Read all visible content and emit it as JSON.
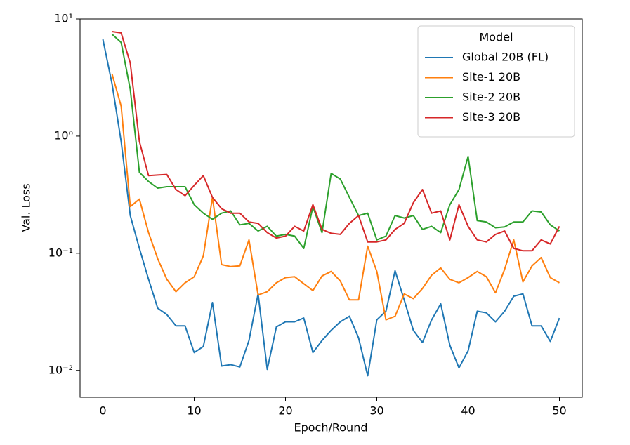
{
  "chart_data": {
    "type": "line",
    "xlabel": "Epoch/Round",
    "ylabel": "Val. Loss",
    "log_y": true,
    "x": [
      0,
      1,
      2,
      3,
      4,
      5,
      6,
      7,
      8,
      9,
      10,
      11,
      12,
      13,
      14,
      15,
      16,
      17,
      18,
      19,
      20,
      21,
      22,
      23,
      24,
      25,
      26,
      27,
      28,
      29,
      30,
      31,
      32,
      33,
      34,
      35,
      36,
      37,
      38,
      39,
      40,
      41,
      42,
      43,
      44,
      45,
      46,
      47,
      48,
      49,
      50
    ],
    "xlim": [
      -2.5,
      52.5
    ],
    "xticks": [
      0,
      10,
      20,
      30,
      40,
      50
    ],
    "ylim": [
      0.0059,
      10
    ],
    "yticks": [
      {
        "value": 0.01,
        "label": "10⁻²"
      },
      {
        "value": 0.1,
        "label": "10⁻¹"
      },
      {
        "value": 1,
        "label": "10⁰"
      },
      {
        "value": 10,
        "label": "10¹"
      }
    ],
    "legend_title": "Model",
    "legend": "upper right",
    "series": [
      {
        "name": "Global 20B (FL)",
        "color": "#1f77b4",
        "values": [
          6.7,
          2.8,
          0.9,
          0.21,
          0.11,
          0.06,
          0.034,
          0.03,
          0.024,
          0.024,
          0.0142,
          0.016,
          0.038,
          0.0109,
          0.0112,
          0.0107,
          0.018,
          0.045,
          0.0102,
          0.0235,
          0.026,
          0.026,
          0.028,
          0.0142,
          0.018,
          0.022,
          0.026,
          0.029,
          0.019,
          0.009,
          0.027,
          0.032,
          0.071,
          0.04,
          0.022,
          0.0173,
          0.027,
          0.037,
          0.0164,
          0.0105,
          0.0147,
          0.032,
          0.031,
          0.026,
          0.032,
          0.043,
          0.045,
          0.024,
          0.024,
          0.0177,
          0.028
        ]
      },
      {
        "name": "Site-1 20B",
        "color": "#ff7f0e",
        "values": [
          null,
          3.4,
          1.8,
          0.25,
          0.29,
          0.15,
          0.09,
          0.06,
          0.047,
          0.056,
          0.063,
          0.095,
          0.3,
          0.08,
          0.077,
          0.078,
          0.13,
          0.044,
          0.047,
          0.056,
          0.062,
          0.063,
          0.055,
          0.048,
          0.064,
          0.07,
          0.058,
          0.04,
          0.04,
          0.115,
          0.07,
          0.027,
          0.029,
          0.045,
          0.041,
          0.05,
          0.065,
          0.075,
          0.06,
          0.056,
          0.062,
          0.07,
          0.063,
          0.046,
          0.073,
          0.13,
          0.057,
          0.078,
          0.092,
          0.062,
          0.056
        ]
      },
      {
        "name": "Site-2 20B",
        "color": "#2ca02c",
        "values": [
          null,
          7.4,
          6.3,
          2.5,
          0.49,
          0.41,
          0.36,
          0.37,
          0.37,
          0.37,
          0.26,
          0.22,
          0.195,
          0.22,
          0.23,
          0.175,
          0.18,
          0.155,
          0.17,
          0.14,
          0.145,
          0.14,
          0.11,
          0.25,
          0.15,
          0.48,
          0.43,
          0.3,
          0.21,
          0.22,
          0.13,
          0.14,
          0.21,
          0.2,
          0.21,
          0.16,
          0.17,
          0.15,
          0.26,
          0.35,
          0.67,
          0.19,
          0.185,
          0.165,
          0.168,
          0.185,
          0.185,
          0.23,
          0.225,
          0.175,
          0.155
        ]
      },
      {
        "name": "Site-3 20B",
        "color": "#d62728",
        "values": [
          null,
          7.8,
          7.6,
          4.2,
          0.9,
          0.46,
          0.465,
          0.47,
          0.35,
          0.31,
          0.38,
          0.46,
          0.3,
          0.24,
          0.22,
          0.22,
          0.185,
          0.18,
          0.15,
          0.135,
          0.14,
          0.17,
          0.155,
          0.26,
          0.16,
          0.148,
          0.145,
          0.18,
          0.21,
          0.125,
          0.125,
          0.13,
          0.16,
          0.18,
          0.27,
          0.35,
          0.22,
          0.23,
          0.13,
          0.26,
          0.17,
          0.13,
          0.125,
          0.145,
          0.155,
          0.11,
          0.105,
          0.105,
          0.13,
          0.12,
          0.17
        ]
      }
    ]
  }
}
